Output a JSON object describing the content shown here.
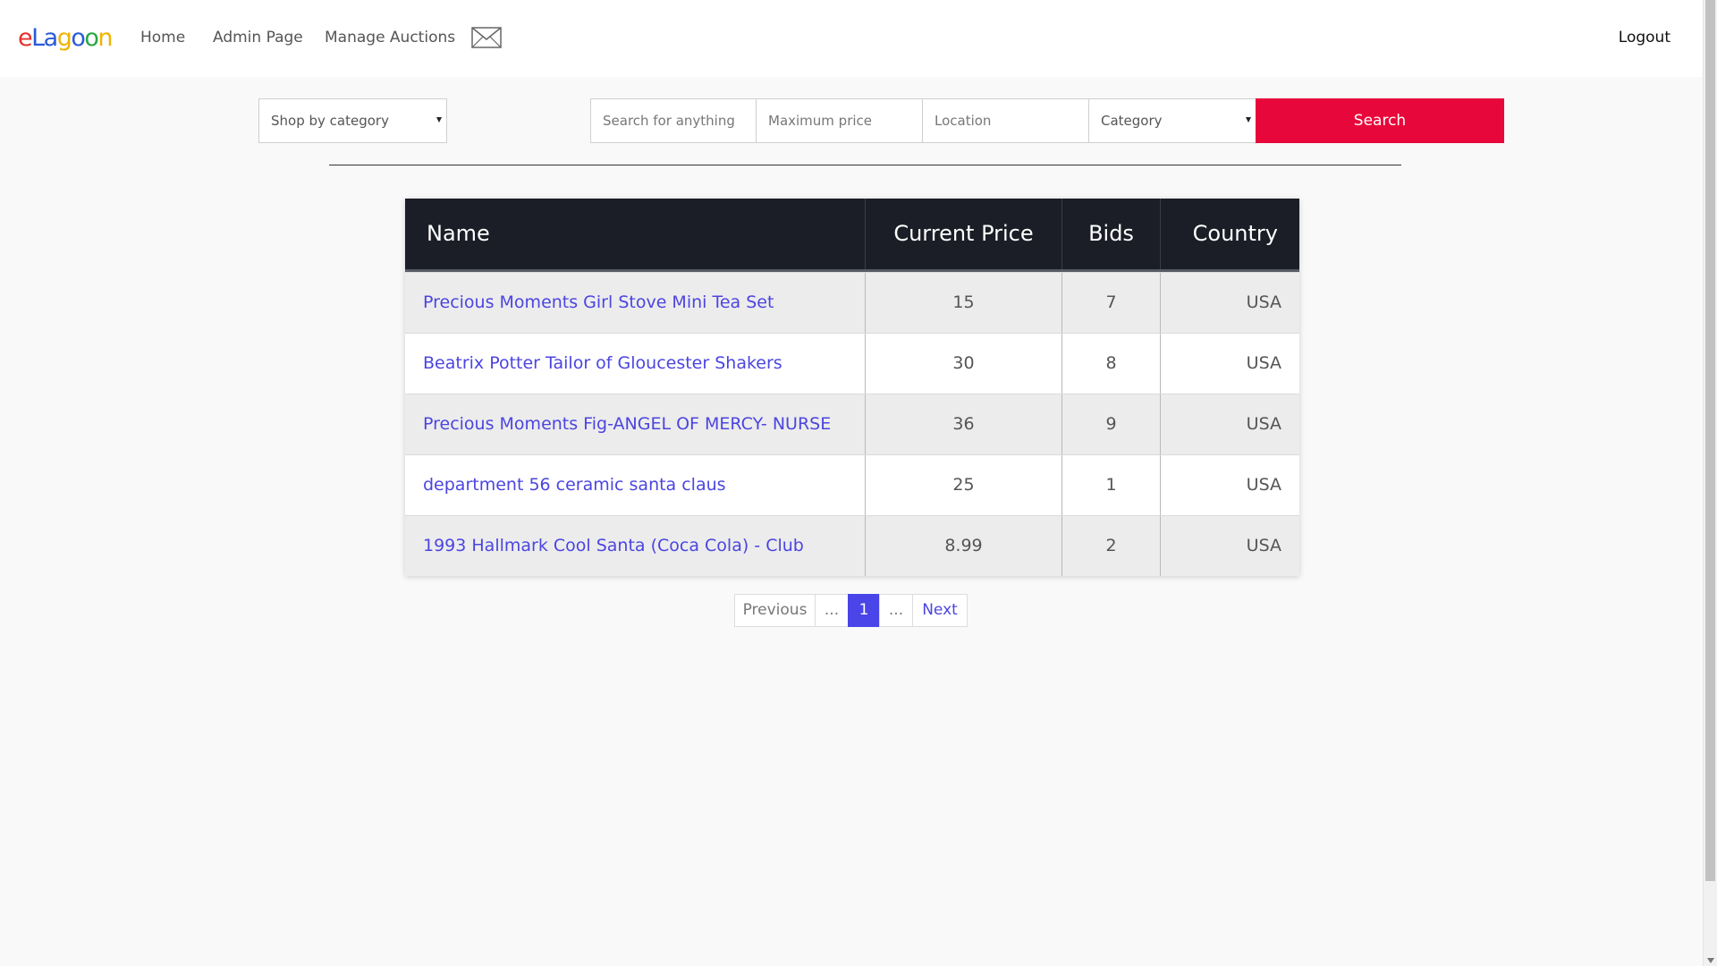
{
  "brand": {
    "logo_letters": [
      {
        "char": "e",
        "color": "#e5302b"
      },
      {
        "char": "L",
        "color": "#2a5bd7"
      },
      {
        "char": "a",
        "color": "#2a5bd7"
      },
      {
        "char": "g",
        "color": "#f0b400"
      },
      {
        "char": "o",
        "color": "#2a5bd7"
      },
      {
        "char": "o",
        "color": "#29a745"
      },
      {
        "char": "n",
        "color": "#f0b400"
      }
    ]
  },
  "nav": {
    "home": "Home",
    "admin": "Admin Page",
    "manage": "Manage Auctions",
    "mail_icon": "envelope-icon",
    "logout": "Logout"
  },
  "search": {
    "shop_by_category": "Shop by category",
    "query_placeholder": "Search for anything",
    "max_price_placeholder": "Maximum price",
    "location_placeholder": "Location",
    "category": "Category",
    "button": "Search",
    "button_color": "#e8073a"
  },
  "table": {
    "headers": {
      "name": "Name",
      "price": "Current Price",
      "bids": "Bids",
      "country": "Country"
    },
    "rows": [
      {
        "name": "Precious Moments Girl Stove Mini Tea Set",
        "price": "15",
        "bids": "7",
        "country": "USA"
      },
      {
        "name": "Beatrix Potter Tailor of Gloucester Shakers",
        "price": "30",
        "bids": "8",
        "country": "USA"
      },
      {
        "name": "Precious Moments Fig-ANGEL OF MERCY- NURSE",
        "price": "36",
        "bids": "9",
        "country": "USA"
      },
      {
        "name": "department 56 ceramic santa claus",
        "price": "25",
        "bids": "1",
        "country": "USA"
      },
      {
        "name": "1993 Hallmark Cool Santa (Coca Cola) - Club",
        "price": "8.99",
        "bids": "2",
        "country": "USA"
      }
    ]
  },
  "pagination": {
    "previous": "Previous",
    "dots_left": "...",
    "current": "1",
    "dots_right": "...",
    "next": "Next",
    "active_color": "#4a45e8"
  }
}
